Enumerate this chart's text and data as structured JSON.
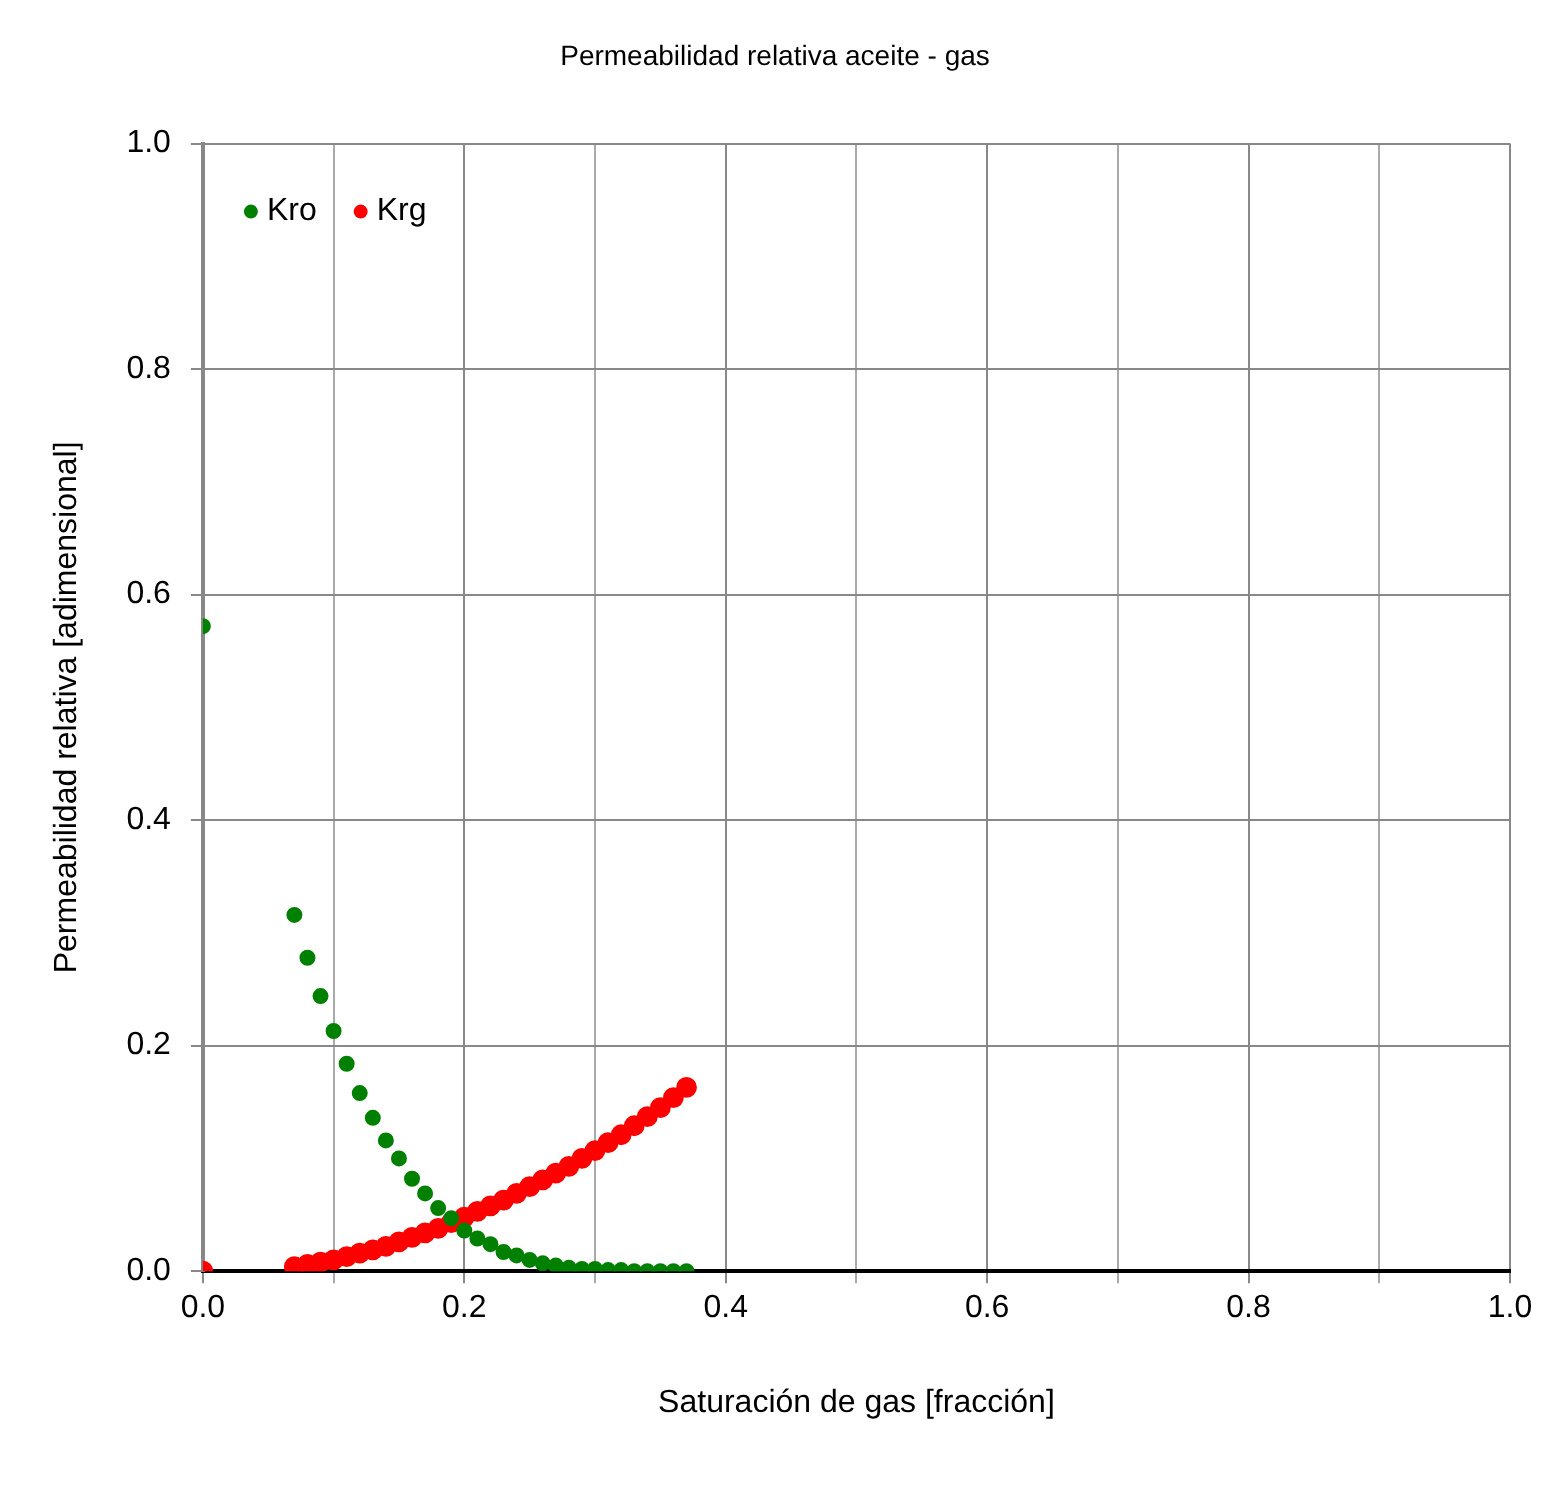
{
  "chart_data": {
    "type": "scatter",
    "title": "Permeabilidad relativa aceite - gas",
    "xlabel": "Saturación de gas [fracción]",
    "ylabel": "Permeabilidad relativa [adimensional]",
    "x": [
      0,
      0.07,
      0.08,
      0.09,
      0.1,
      0.11,
      0.12,
      0.13,
      0.14,
      0.15,
      0.16,
      0.17,
      0.18,
      0.19,
      0.2,
      0.21,
      0.22,
      0.23,
      0.24,
      0.25,
      0.26,
      0.27,
      0.28,
      0.29,
      0.3,
      0.31,
      0.32,
      0.33,
      0.34,
      0.35,
      0.36,
      0.37
    ],
    "series": [
      {
        "name": "Kro",
        "color": "#008000",
        "values": [
          0.572,
          0.316,
          0.278,
          0.244,
          0.213,
          0.184,
          0.158,
          0.136,
          0.116,
          0.1,
          0.082,
          0.069,
          0.056,
          0.047,
          0.036,
          0.029,
          0.024,
          0.017,
          0.014,
          0.01,
          0.007,
          0.005,
          0.003,
          0.002,
          0.002,
          0.001,
          0.001,
          0,
          0,
          0,
          0,
          0
        ]
      },
      {
        "name": "Krg",
        "color": "#ff0000",
        "values": [
          0,
          0.004,
          0.006,
          0.008,
          0.01,
          0.013,
          0.016,
          0.019,
          0.022,
          0.026,
          0.03,
          0.034,
          0.038,
          0.043,
          0.048,
          0.053,
          0.058,
          0.063,
          0.069,
          0.075,
          0.081,
          0.087,
          0.093,
          0.1,
          0.107,
          0.114,
          0.121,
          0.129,
          0.137,
          0.145,
          0.154,
          0.163
        ]
      }
    ],
    "xlim": [
      0,
      1
    ],
    "ylim": [
      0,
      1
    ],
    "xticks": [
      {
        "value": 0,
        "label": "0.0"
      },
      {
        "value": 0.1,
        "label": null
      },
      {
        "value": 0.2,
        "label": "0.2"
      },
      {
        "value": 0.3,
        "label": null
      },
      {
        "value": 0.4,
        "label": "0.4"
      },
      {
        "value": 0.5,
        "label": null
      },
      {
        "value": 0.6,
        "label": "0.6"
      },
      {
        "value": 0.7,
        "label": null
      },
      {
        "value": 0.8,
        "label": "0.8"
      },
      {
        "value": 0.9,
        "label": null
      },
      {
        "value": 1,
        "label": "1.0"
      }
    ],
    "yticks": [
      {
        "value": 0,
        "label": "0.0"
      },
      {
        "value": 0.2,
        "label": "0.2"
      },
      {
        "value": 0.4,
        "label": "0.4"
      },
      {
        "value": 0.6,
        "label": "0.6"
      },
      {
        "value": 0.8,
        "label": "0.8"
      },
      {
        "value": 1,
        "label": "1.0"
      }
    ],
    "grid": true,
    "legend": "top left",
    "marker": "circle"
  }
}
